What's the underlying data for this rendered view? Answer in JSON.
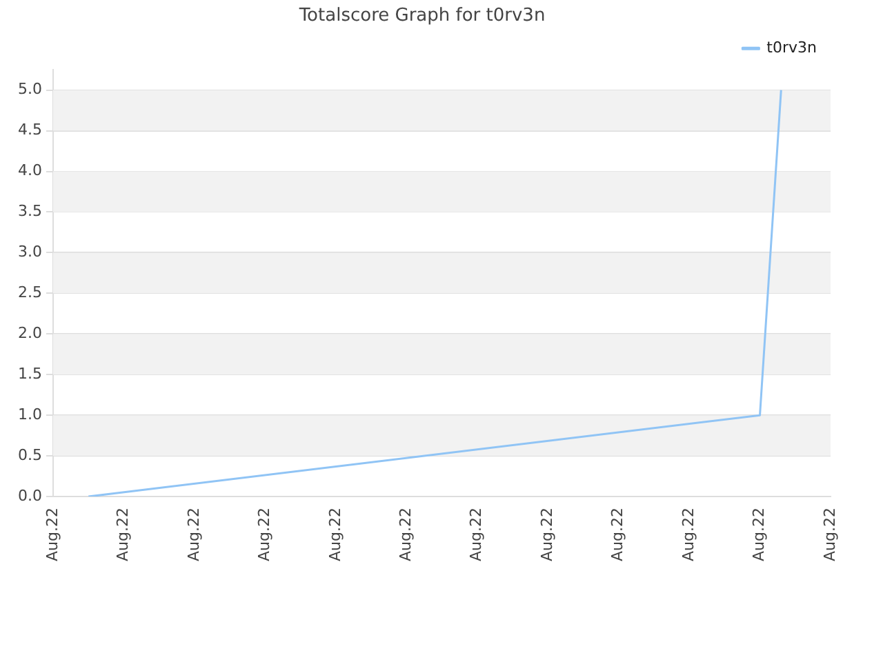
{
  "chart_data": {
    "type": "line",
    "title": "Totalscore Graph for t0rv3n",
    "categories": [
      "Aug.22",
      null,
      null,
      null,
      null,
      null,
      null,
      null,
      null,
      null,
      "Aug.22",
      null,
      null,
      null,
      null,
      null,
      null,
      null,
      null,
      null,
      "Aug.22",
      null,
      null,
      null,
      null,
      null,
      null,
      null,
      null,
      null,
      "Aug.22",
      null,
      null,
      null,
      null,
      null,
      null,
      null,
      null,
      null,
      "Aug.22",
      null,
      null,
      null,
      null,
      null,
      null,
      null,
      null,
      null,
      "Aug.22",
      null,
      null,
      null,
      null,
      null,
      null,
      null,
      null,
      null,
      "Aug.22",
      null,
      null,
      null,
      null,
      null,
      null,
      null,
      null,
      null,
      "Aug.22",
      null,
      null,
      null,
      null,
      null,
      null,
      null,
      null,
      null,
      "Aug.22",
      null,
      null,
      null,
      null,
      null,
      null,
      null,
      null,
      null,
      "Aug.22",
      null,
      null,
      null,
      null,
      null,
      null,
      null,
      null,
      null,
      "Aug.22",
      null,
      null,
      null,
      null,
      null,
      null,
      null,
      null,
      null,
      "Aug.22"
    ],
    "series": [
      {
        "name": "t0rv3n",
        "color": "#90c4f5",
        "values": [
          null,
          null,
          null,
          null,
          null,
          0,
          null,
          null,
          null,
          null,
          null,
          null,
          null,
          null,
          null,
          null,
          null,
          null,
          null,
          null,
          null,
          null,
          null,
          null,
          null,
          null,
          null,
          null,
          null,
          null,
          null,
          null,
          null,
          null,
          null,
          null,
          null,
          null,
          null,
          null,
          null,
          null,
          null,
          null,
          null,
          null,
          null,
          null,
          null,
          null,
          null,
          null,
          null,
          null,
          null,
          null,
          null,
          null,
          null,
          null,
          null,
          null,
          null,
          null,
          null,
          null,
          null,
          null,
          null,
          null,
          null,
          null,
          null,
          null,
          null,
          null,
          null,
          null,
          null,
          null,
          null,
          null,
          null,
          null,
          null,
          null,
          null,
          null,
          null,
          null,
          null,
          null,
          null,
          null,
          null,
          null,
          null,
          null,
          null,
          null,
          1,
          null,
          null,
          5,
          null,
          null,
          null,
          null,
          null,
          null,
          null
        ]
      }
    ],
    "ylim": [
      0,
      5.25
    ],
    "yticks": [
      {
        "value": 0,
        "label": "0.0"
      },
      {
        "value": 0.5,
        "label": "0.5"
      },
      {
        "value": 1,
        "label": "1.0"
      },
      {
        "value": 1.5,
        "label": "1.5"
      },
      {
        "value": 2,
        "label": "2.0"
      },
      {
        "value": 2.5,
        "label": "2.5"
      },
      {
        "value": 3,
        "label": "3.0"
      },
      {
        "value": 3.5,
        "label": "3.5"
      },
      {
        "value": 4,
        "label": "4.0"
      },
      {
        "value": 4.5,
        "label": "4.5"
      },
      {
        "value": 5,
        "label": "5.0"
      }
    ],
    "grid": "y",
    "legend": "top right",
    "marker": "none",
    "line_style": "solid"
  }
}
